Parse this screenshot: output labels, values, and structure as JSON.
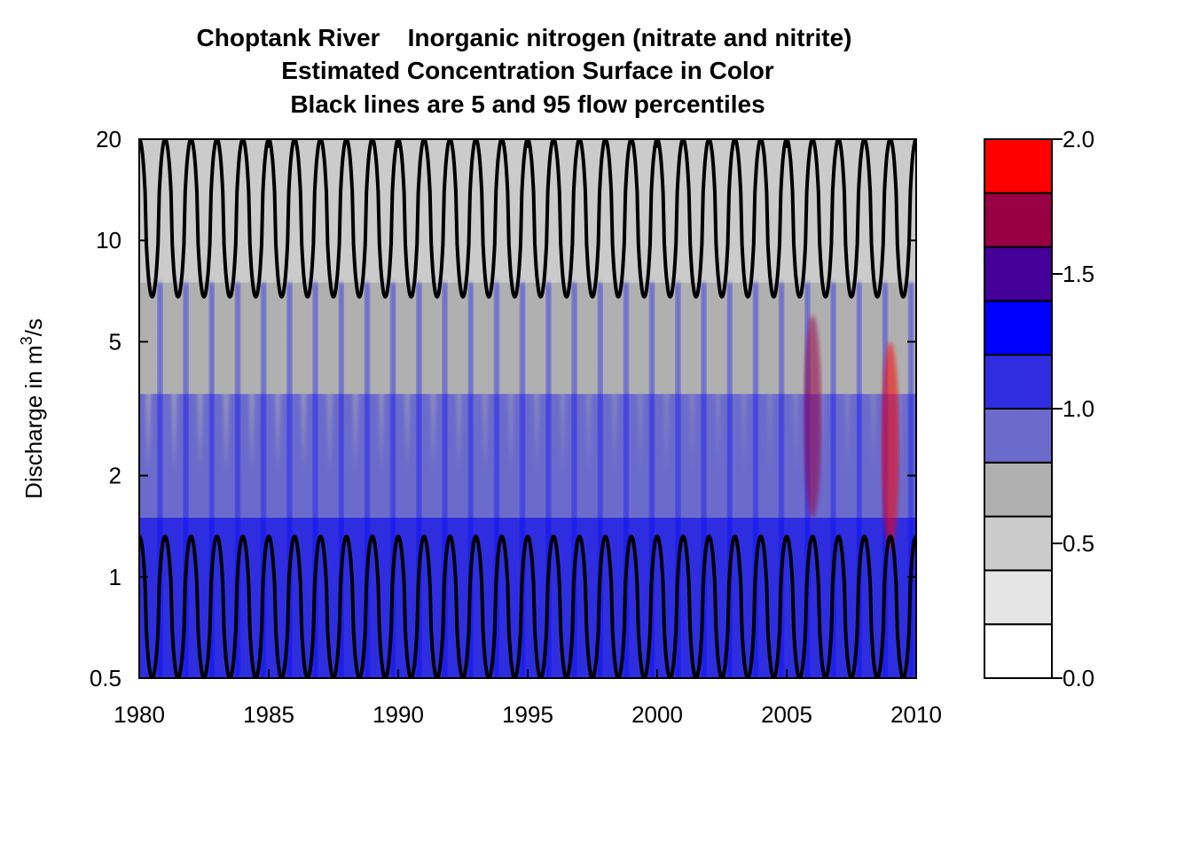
{
  "chart_data": {
    "type": "heatmap",
    "title": [
      "Choptank River    Inorganic nitrogen (nitrate and nitrite)",
      "Estimated Concentration Surface in Color",
      "Black lines are 5 and 95 flow percentiles"
    ],
    "xlabel": "",
    "ylabel": {
      "main": "Discharge in m",
      "sup": "3",
      "tail": "/s"
    },
    "x_range": [
      1980,
      2010
    ],
    "y_range": [
      0.5,
      20
    ],
    "y_scale": "log",
    "x_ticks": [
      {
        "value": 1980,
        "label": "1980"
      },
      {
        "value": 1985,
        "label": "1985"
      },
      {
        "value": 1990,
        "label": "1990"
      },
      {
        "value": 1995,
        "label": "1995"
      },
      {
        "value": 2000,
        "label": "2000"
      },
      {
        "value": 2005,
        "label": "2005"
      },
      {
        "value": 2010,
        "label": "2010"
      }
    ],
    "y_ticks": [
      {
        "value": 0.5,
        "label": "0.5"
      },
      {
        "value": 1,
        "label": "1"
      },
      {
        "value": 2,
        "label": "2"
      },
      {
        "value": 5,
        "label": "5"
      },
      {
        "value": 10,
        "label": "10"
      },
      {
        "value": 20,
        "label": "20"
      }
    ],
    "colorbar": {
      "breaks": [
        0.0,
        0.2,
        0.4,
        0.6,
        0.8,
        1.0,
        1.2,
        1.4,
        1.6,
        1.8,
        2.0
      ],
      "colors": [
        "#ffffff",
        "#e5e5e5",
        "#cbcbcb",
        "#b0b0b0",
        "#6b6bcc",
        "#2e2ee0",
        "#0000ff",
        "#440099",
        "#990044",
        "#ff0000"
      ],
      "ticks": [
        {
          "value": 0.0,
          "label": "0.0"
        },
        {
          "value": 0.5,
          "label": "0.5"
        },
        {
          "value": 1.0,
          "label": "1.0"
        },
        {
          "value": 1.5,
          "label": "1.5"
        },
        {
          "value": 2.0,
          "label": "2.0"
        }
      ]
    },
    "percentile_lines": {
      "color": "#000000",
      "cycles_per_year": 1,
      "p95": {
        "min": 6.8,
        "max": 20
      },
      "p05": {
        "min": 0.5,
        "max": 1.32
      }
    },
    "surface_bands": [
      {
        "q_min": 7.5,
        "q_max": 20,
        "value": 0.5
      },
      {
        "q_min": 3.5,
        "q_max": 7.5,
        "value": 0.75
      },
      {
        "q_min": 1.5,
        "q_max": 3.5,
        "value": 0.95
      },
      {
        "q_min": 0.5,
        "q_max": 1.5,
        "value": 1.15
      }
    ],
    "late_period_peaks": [
      {
        "year": 2006.0,
        "q_min": 1.5,
        "q_max": 6,
        "value": 1.75
      },
      {
        "year": 2009.0,
        "q_min": 1.2,
        "q_max": 5,
        "value": 1.9
      }
    ]
  }
}
